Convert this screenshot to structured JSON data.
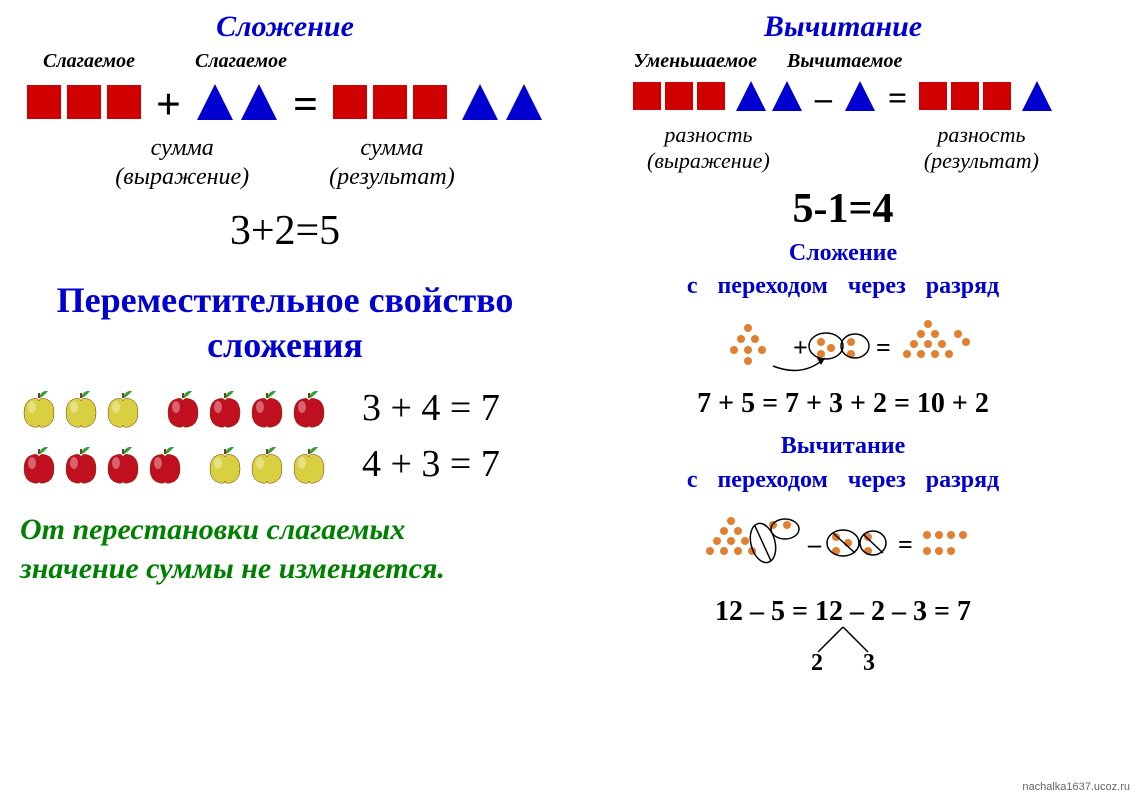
{
  "colors": {
    "red": "#d00000",
    "blue": "#0000d0",
    "navy": "#0000c0",
    "green_text": "#008000",
    "dot": "#e08030",
    "black": "#000000",
    "apple_red": "#c01020",
    "apple_yellow": "#d8d040",
    "leaf_green": "#30a030"
  },
  "left": {
    "title": "Сложение",
    "term1": "Слагаемое",
    "term2": "Слагаемое",
    "shape_eq": {
      "left_squares": 3,
      "right_triangles": 2,
      "result_squares": 3,
      "result_triangles": 2,
      "square_size": 36,
      "triangle_size": 40,
      "square_color": "#d00000",
      "triangle_color": "#0000d0"
    },
    "sum_label1_line1": "сумма",
    "sum_label1_line2": "(выражение)",
    "sum_label2_line1": "сумма",
    "sum_label2_line2": "(результат)",
    "equation1": "3+2=5",
    "prop_title_line1": "Переместительное свойство",
    "prop_title_line2": "сложения",
    "apple_rows": [
      {
        "pattern": [
          "y",
          "y",
          "y",
          "gap",
          "r",
          "r",
          "r",
          "r"
        ],
        "eq": "3 + 4 = 7"
      },
      {
        "pattern": [
          "r",
          "r",
          "r",
          "r",
          "gap",
          "y",
          "y",
          "y"
        ],
        "eq": "4 + 3 = 7"
      }
    ],
    "rule_line1": "От перестановки слагаемых",
    "rule_line2": "значение суммы не изменяется."
  },
  "right": {
    "title": "Вычитание",
    "term1": "Уменьшаемое",
    "term2": "Вычитаемое",
    "shape_eq": {
      "squares": 3,
      "triangles": 2,
      "minus_triangles": 1,
      "result_squares": 3,
      "result_triangles": 1,
      "square_size": 30,
      "triangle_size": 34,
      "square_color": "#d00000",
      "triangle_color": "#0000d0"
    },
    "diff_label1_line1": "разность",
    "diff_label1_line2": "(выражение)",
    "diff_label2_line1": "разность",
    "diff_label2_line2": "(результат)",
    "equation1": "5-1=4",
    "add_title_line1": "Сложение",
    "add_title_line2": "с   переходом   через   разряд",
    "add_decomp_eq": "7 + 5 = 7 + 3 + 2 = 10 + 2",
    "sub_title_line1": "Вычитание",
    "sub_title_line2": "с   переходом   через   разряд",
    "sub_decomp_eq": "12 – 5 = 12 – 2 – 3 = 7",
    "split_left": "2",
    "split_right": "3",
    "dot_color": "#e08030",
    "dot_radius": 4
  },
  "watermark": "nachalka1637.ucoz.ru"
}
